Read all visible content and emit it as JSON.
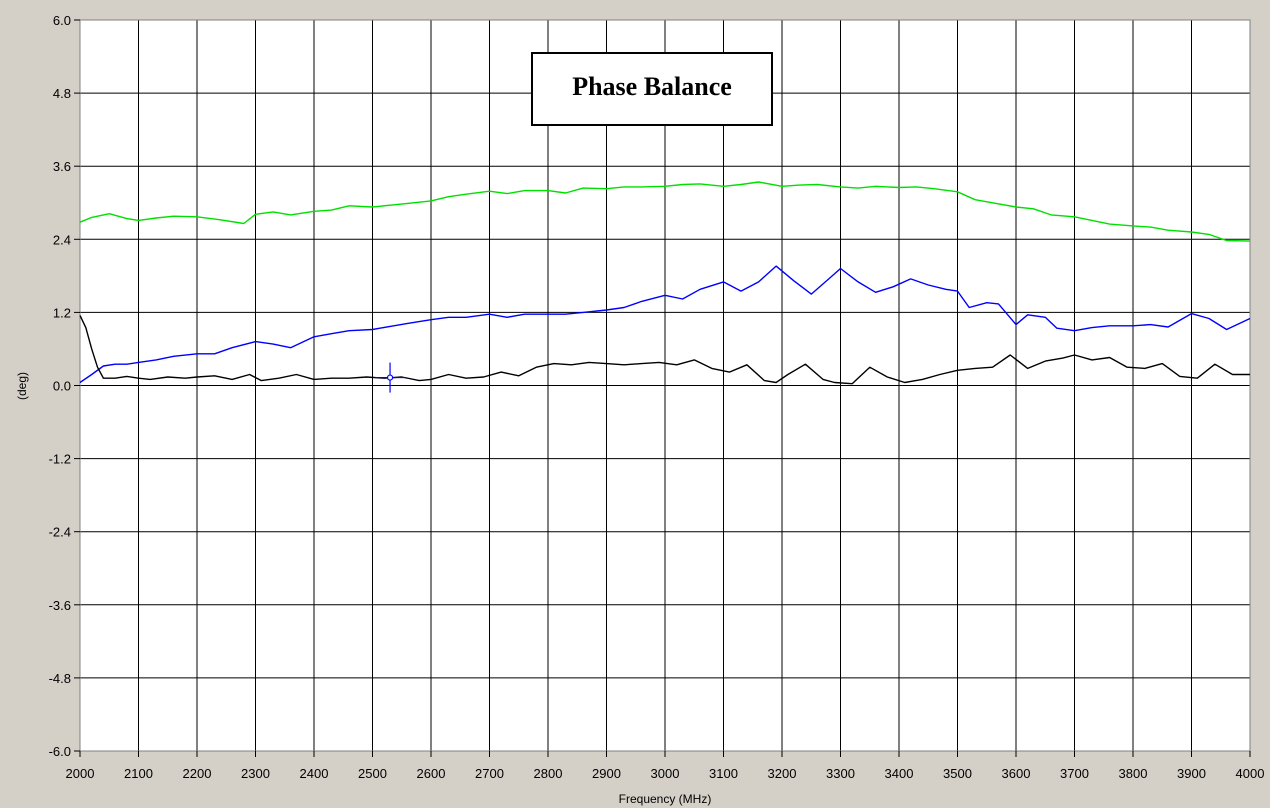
{
  "chart_data": {
    "type": "line",
    "title": "Phase Balance",
    "xlabel": "Frequency (MHz)",
    "ylabel": "(deg)",
    "xlim": [
      2000,
      4000
    ],
    "ylim": [
      -6.0,
      6.0
    ],
    "xticks": [
      2000,
      2100,
      2200,
      2300,
      2400,
      2500,
      2600,
      2700,
      2800,
      2900,
      3000,
      3100,
      3200,
      3300,
      3400,
      3500,
      3600,
      3700,
      3800,
      3900,
      4000
    ],
    "yticks": [
      "6.0",
      "4.8",
      "3.6",
      "2.4",
      "1.2",
      "0.0",
      "-1.2",
      "-2.4",
      "-3.6",
      "-4.8",
      "-6.0"
    ],
    "grid": true,
    "series": [
      {
        "color": "#00e000",
        "x": [
          2000,
          2020,
          2050,
          2080,
          2100,
          2130,
          2160,
          2200,
          2240,
          2280,
          2300,
          2330,
          2360,
          2400,
          2430,
          2460,
          2500,
          2530,
          2560,
          2600,
          2630,
          2660,
          2700,
          2730,
          2760,
          2800,
          2830,
          2860,
          2900,
          2930,
          2960,
          3000,
          3030,
          3060,
          3100,
          3130,
          3160,
          3200,
          3230,
          3260,
          3300,
          3330,
          3360,
          3400,
          3430,
          3460,
          3500,
          3530,
          3560,
          3600,
          3630,
          3660,
          3700,
          3730,
          3760,
          3800,
          3830,
          3860,
          3900,
          3930,
          3960,
          4000
        ],
        "values": [
          2.68,
          2.76,
          2.82,
          2.74,
          2.71,
          2.75,
          2.78,
          2.77,
          2.72,
          2.66,
          2.81,
          2.85,
          2.8,
          2.86,
          2.88,
          2.95,
          2.93,
          2.96,
          2.99,
          3.03,
          3.1,
          3.14,
          3.19,
          3.15,
          3.2,
          3.2,
          3.16,
          3.24,
          3.23,
          3.26,
          3.26,
          3.27,
          3.3,
          3.31,
          3.27,
          3.3,
          3.34,
          3.27,
          3.29,
          3.3,
          3.26,
          3.24,
          3.27,
          3.25,
          3.26,
          3.23,
          3.18,
          3.05,
          3.0,
          2.93,
          2.9,
          2.8,
          2.77,
          2.71,
          2.65,
          2.62,
          2.6,
          2.55,
          2.52,
          2.48,
          2.38,
          2.37
        ]
      },
      {
        "color": "#0000ff",
        "x": [
          2000,
          2020,
          2040,
          2060,
          2080,
          2100,
          2130,
          2160,
          2200,
          2230,
          2260,
          2300,
          2330,
          2360,
          2400,
          2430,
          2460,
          2500,
          2530,
          2560,
          2600,
          2630,
          2660,
          2700,
          2730,
          2760,
          2800,
          2830,
          2860,
          2900,
          2930,
          2960,
          3000,
          3030,
          3060,
          3100,
          3130,
          3160,
          3190,
          3220,
          3250,
          3280,
          3300,
          3330,
          3360,
          3390,
          3420,
          3450,
          3480,
          3500,
          3520,
          3550,
          3570,
          3600,
          3620,
          3650,
          3670,
          3700,
          3730,
          3760,
          3800,
          3830,
          3860,
          3900,
          3930,
          3960,
          4000
        ],
        "values": [
          0.05,
          0.18,
          0.32,
          0.35,
          0.35,
          0.38,
          0.42,
          0.48,
          0.52,
          0.52,
          0.62,
          0.72,
          0.68,
          0.62,
          0.8,
          0.85,
          0.9,
          0.92,
          0.97,
          1.02,
          1.08,
          1.12,
          1.12,
          1.17,
          1.12,
          1.17,
          1.17,
          1.17,
          1.2,
          1.24,
          1.28,
          1.38,
          1.48,
          1.42,
          1.58,
          1.7,
          1.55,
          1.7,
          1.96,
          1.72,
          1.5,
          1.75,
          1.92,
          1.7,
          1.53,
          1.62,
          1.75,
          1.65,
          1.58,
          1.55,
          1.28,
          1.36,
          1.34,
          1.0,
          1.16,
          1.12,
          0.94,
          0.9,
          0.95,
          0.98,
          0.98,
          1.0,
          0.96,
          1.18,
          1.1,
          0.92,
          1.1
        ]
      },
      {
        "color": "#000000",
        "x": [
          2000,
          2010,
          2020,
          2030,
          2040,
          2060,
          2080,
          2100,
          2120,
          2150,
          2180,
          2200,
          2230,
          2260,
          2290,
          2310,
          2340,
          2370,
          2400,
          2430,
          2460,
          2490,
          2520,
          2550,
          2580,
          2600,
          2630,
          2660,
          2690,
          2720,
          2750,
          2780,
          2810,
          2840,
          2870,
          2900,
          2930,
          2960,
          2990,
          3020,
          3050,
          3080,
          3110,
          3140,
          3170,
          3190,
          3210,
          3240,
          3270,
          3290,
          3320,
          3350,
          3380,
          3410,
          3440,
          3470,
          3500,
          3530,
          3560,
          3590,
          3620,
          3650,
          3680,
          3700,
          3730,
          3760,
          3790,
          3820,
          3850,
          3880,
          3910,
          3940,
          3970,
          4000
        ],
        "values": [
          1.15,
          0.95,
          0.6,
          0.3,
          0.12,
          0.12,
          0.15,
          0.12,
          0.1,
          0.14,
          0.12,
          0.14,
          0.16,
          0.1,
          0.18,
          0.08,
          0.12,
          0.18,
          0.1,
          0.12,
          0.12,
          0.14,
          0.12,
          0.14,
          0.08,
          0.1,
          0.18,
          0.12,
          0.14,
          0.22,
          0.16,
          0.3,
          0.36,
          0.34,
          0.38,
          0.36,
          0.34,
          0.36,
          0.38,
          0.34,
          0.42,
          0.28,
          0.22,
          0.34,
          0.08,
          0.05,
          0.18,
          0.35,
          0.1,
          0.05,
          0.03,
          0.3,
          0.14,
          0.05,
          0.1,
          0.18,
          0.25,
          0.28,
          0.3,
          0.5,
          0.28,
          0.4,
          0.45,
          0.5,
          0.42,
          0.46,
          0.3,
          0.28,
          0.36,
          0.15,
          0.12,
          0.35,
          0.18,
          0.18
        ]
      }
    ],
    "marker": {
      "x": 2530,
      "y": 0.13,
      "color": "#0000ff"
    }
  }
}
